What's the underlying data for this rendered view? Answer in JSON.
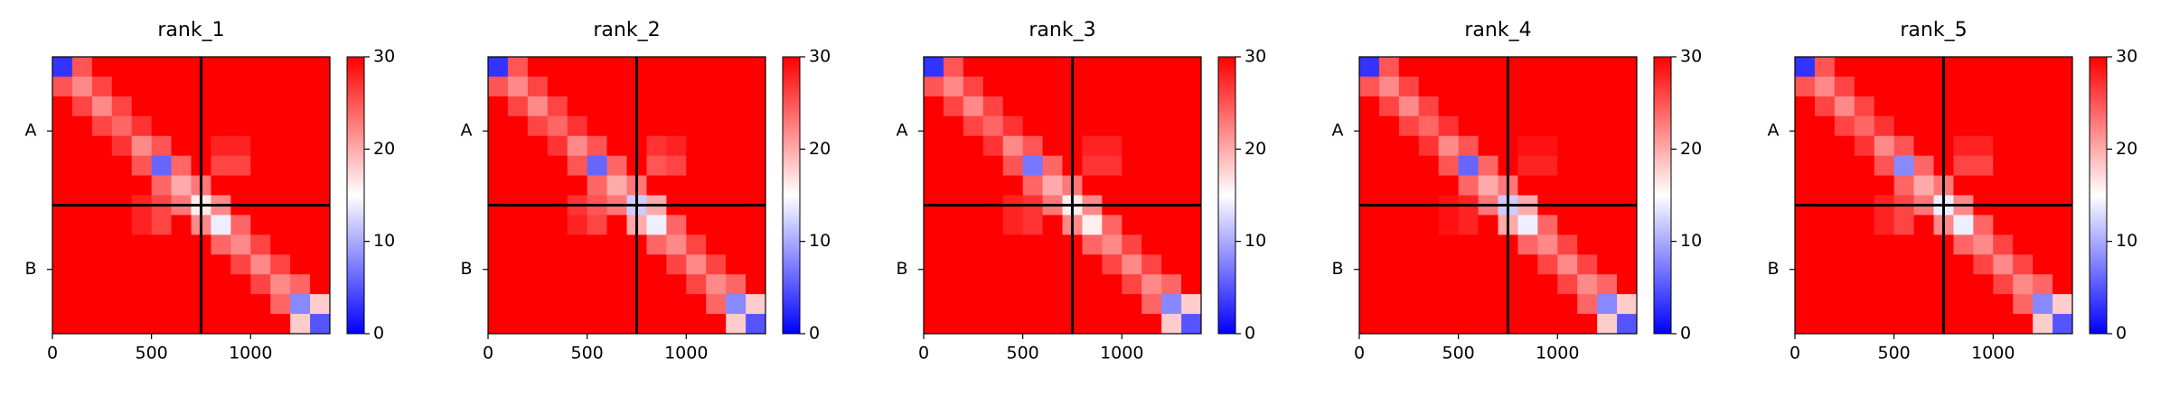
{
  "chart_data": [
    {
      "type": "heatmap",
      "title": "rank_1",
      "xlim": [
        0,
        1400
      ],
      "ylim": [
        1400,
        0
      ],
      "xticks": [
        0,
        500,
        1000
      ],
      "yticks": [
        {
          "value": 375,
          "label": "A"
        },
        {
          "value": 1075,
          "label": "B"
        }
      ],
      "chain_breaks": [
        750
      ],
      "colormap": [
        "#0000ff",
        "#ffffff",
        "#ff0000"
      ],
      "colorbar_lim": [
        0,
        30
      ],
      "colorbar_ticks": [
        0,
        10,
        20,
        30
      ],
      "z": [
        [
          3,
          25,
          30,
          30,
          30,
          30,
          30,
          30,
          30,
          30,
          30,
          30,
          30,
          30
        ],
        [
          25,
          22,
          26,
          30,
          30,
          30,
          30,
          30,
          30,
          30,
          30,
          30,
          30,
          30
        ],
        [
          30,
          26,
          22,
          26,
          30,
          30,
          30,
          30,
          30,
          30,
          30,
          30,
          30,
          30
        ],
        [
          30,
          30,
          26,
          24,
          27,
          30,
          30,
          30,
          30,
          30,
          30,
          30,
          30,
          30
        ],
        [
          30,
          30,
          30,
          27,
          22,
          25,
          30,
          30,
          28,
          28,
          30,
          30,
          30,
          30
        ],
        [
          30,
          30,
          30,
          30,
          25,
          6,
          24,
          30,
          26,
          26,
          30,
          30,
          30,
          30
        ],
        [
          30,
          30,
          30,
          30,
          30,
          24,
          20,
          23,
          30,
          30,
          30,
          30,
          30,
          30
        ],
        [
          30,
          30,
          30,
          30,
          28,
          26,
          23,
          16,
          22,
          30,
          30,
          30,
          30,
          30
        ],
        [
          30,
          30,
          30,
          30,
          28,
          26,
          30,
          22,
          14,
          24,
          30,
          30,
          30,
          30
        ],
        [
          30,
          30,
          30,
          30,
          30,
          30,
          30,
          30,
          24,
          22,
          26,
          30,
          30,
          30
        ],
        [
          30,
          30,
          30,
          30,
          30,
          30,
          30,
          30,
          30,
          26,
          22,
          26,
          30,
          30
        ],
        [
          30,
          30,
          30,
          30,
          30,
          30,
          30,
          30,
          30,
          30,
          26,
          22,
          24,
          30
        ],
        [
          30,
          30,
          30,
          30,
          30,
          30,
          30,
          30,
          30,
          30,
          30,
          24,
          8,
          18
        ],
        [
          30,
          30,
          30,
          30,
          30,
          30,
          30,
          30,
          30,
          30,
          30,
          30,
          18,
          5
        ]
      ]
    },
    {
      "type": "heatmap",
      "title": "rank_2",
      "xlim": [
        0,
        1400
      ],
      "ylim": [
        1400,
        0
      ],
      "xticks": [
        0,
        500,
        1000
      ],
      "yticks": [
        {
          "value": 375,
          "label": "A"
        },
        {
          "value": 1075,
          "label": "B"
        }
      ],
      "chain_breaks": [
        750
      ],
      "colormap": [
        "#0000ff",
        "#ffffff",
        "#ff0000"
      ],
      "colorbar_lim": [
        0,
        30
      ],
      "colorbar_ticks": [
        0,
        10,
        20,
        30
      ],
      "z": [
        [
          3,
          25,
          30,
          30,
          30,
          30,
          30,
          30,
          30,
          30,
          30,
          30,
          30,
          30
        ],
        [
          25,
          22,
          26,
          30,
          30,
          30,
          30,
          30,
          30,
          30,
          30,
          30,
          30,
          30
        ],
        [
          30,
          26,
          22,
          26,
          30,
          30,
          30,
          30,
          30,
          30,
          30,
          30,
          30,
          30
        ],
        [
          30,
          30,
          26,
          24,
          27,
          30,
          30,
          30,
          30,
          30,
          30,
          30,
          30,
          30
        ],
        [
          30,
          30,
          30,
          27,
          22,
          25,
          30,
          30,
          27,
          28,
          30,
          30,
          30,
          30
        ],
        [
          30,
          30,
          30,
          30,
          25,
          6,
          24,
          30,
          25,
          26,
          30,
          30,
          30,
          30
        ],
        [
          30,
          30,
          30,
          30,
          30,
          24,
          20,
          23,
          30,
          30,
          30,
          30,
          30,
          30
        ],
        [
          30,
          30,
          30,
          30,
          27,
          25,
          23,
          12,
          20,
          30,
          30,
          30,
          30,
          30
        ],
        [
          30,
          30,
          30,
          30,
          28,
          26,
          30,
          20,
          14,
          24,
          30,
          30,
          30,
          30
        ],
        [
          30,
          30,
          30,
          30,
          30,
          30,
          30,
          30,
          24,
          22,
          26,
          30,
          30,
          30
        ],
        [
          30,
          30,
          30,
          30,
          30,
          30,
          30,
          30,
          30,
          26,
          22,
          26,
          30,
          30
        ],
        [
          30,
          30,
          30,
          30,
          30,
          30,
          30,
          30,
          30,
          30,
          26,
          22,
          24,
          30
        ],
        [
          30,
          30,
          30,
          30,
          30,
          30,
          30,
          30,
          30,
          30,
          30,
          24,
          8,
          18
        ],
        [
          30,
          30,
          30,
          30,
          30,
          30,
          30,
          30,
          30,
          30,
          30,
          30,
          18,
          5
        ]
      ]
    },
    {
      "type": "heatmap",
      "title": "rank_3",
      "xlim": [
        0,
        1400
      ],
      "ylim": [
        1400,
        0
      ],
      "xticks": [
        0,
        500,
        1000
      ],
      "yticks": [
        {
          "value": 375,
          "label": "A"
        },
        {
          "value": 1075,
          "label": "B"
        }
      ],
      "chain_breaks": [
        750
      ],
      "colormap": [
        "#0000ff",
        "#ffffff",
        "#ff0000"
      ],
      "colorbar_lim": [
        0,
        30
      ],
      "colorbar_ticks": [
        0,
        10,
        20,
        30
      ],
      "z": [
        [
          3,
          25,
          30,
          30,
          30,
          30,
          30,
          30,
          30,
          30,
          30,
          30,
          30,
          30
        ],
        [
          25,
          22,
          26,
          30,
          30,
          30,
          30,
          30,
          30,
          30,
          30,
          30,
          30,
          30
        ],
        [
          30,
          26,
          22,
          26,
          30,
          30,
          30,
          30,
          30,
          30,
          30,
          30,
          30,
          30
        ],
        [
          30,
          30,
          26,
          24,
          27,
          30,
          30,
          30,
          30,
          30,
          30,
          30,
          30,
          30
        ],
        [
          30,
          30,
          30,
          27,
          22,
          25,
          30,
          30,
          28,
          28,
          30,
          30,
          30,
          30
        ],
        [
          30,
          30,
          30,
          30,
          25,
          7,
          24,
          30,
          27,
          27,
          30,
          30,
          30,
          30
        ],
        [
          30,
          30,
          30,
          30,
          30,
          24,
          20,
          23,
          30,
          30,
          30,
          30,
          30,
          30
        ],
        [
          30,
          30,
          30,
          30,
          28,
          27,
          23,
          16,
          22,
          30,
          30,
          30,
          30,
          30
        ],
        [
          30,
          30,
          30,
          30,
          28,
          27,
          30,
          22,
          16,
          24,
          30,
          30,
          30,
          30
        ],
        [
          30,
          30,
          30,
          30,
          30,
          30,
          30,
          30,
          24,
          22,
          26,
          30,
          30,
          30
        ],
        [
          30,
          30,
          30,
          30,
          30,
          30,
          30,
          30,
          30,
          26,
          22,
          26,
          30,
          30
        ],
        [
          30,
          30,
          30,
          30,
          30,
          30,
          30,
          30,
          30,
          30,
          26,
          22,
          24,
          30
        ],
        [
          30,
          30,
          30,
          30,
          30,
          30,
          30,
          30,
          30,
          30,
          30,
          24,
          8,
          18
        ],
        [
          30,
          30,
          30,
          30,
          30,
          30,
          30,
          30,
          30,
          30,
          30,
          30,
          18,
          5
        ]
      ]
    },
    {
      "type": "heatmap",
      "title": "rank_4",
      "xlim": [
        0,
        1400
      ],
      "ylim": [
        1400,
        0
      ],
      "xticks": [
        0,
        500,
        1000
      ],
      "yticks": [
        {
          "value": 375,
          "label": "A"
        },
        {
          "value": 1075,
          "label": "B"
        }
      ],
      "chain_breaks": [
        750
      ],
      "colormap": [
        "#0000ff",
        "#ffffff",
        "#ff0000"
      ],
      "colorbar_lim": [
        0,
        30
      ],
      "colorbar_ticks": [
        0,
        10,
        20,
        30
      ],
      "z": [
        [
          3,
          25,
          30,
          30,
          30,
          30,
          30,
          30,
          30,
          30,
          30,
          30,
          30,
          30
        ],
        [
          25,
          22,
          26,
          30,
          30,
          30,
          30,
          30,
          30,
          30,
          30,
          30,
          30,
          30
        ],
        [
          30,
          26,
          22,
          26,
          30,
          30,
          30,
          30,
          30,
          30,
          30,
          30,
          30,
          30
        ],
        [
          30,
          30,
          26,
          24,
          27,
          30,
          30,
          30,
          30,
          30,
          30,
          30,
          30,
          30
        ],
        [
          30,
          30,
          30,
          27,
          22,
          25,
          30,
          30,
          29,
          29,
          30,
          30,
          30,
          30
        ],
        [
          30,
          30,
          30,
          30,
          25,
          6,
          24,
          30,
          28,
          28,
          30,
          30,
          30,
          30
        ],
        [
          30,
          30,
          30,
          30,
          30,
          24,
          20,
          23,
          30,
          30,
          30,
          30,
          30,
          30
        ],
        [
          30,
          30,
          30,
          30,
          29,
          28,
          23,
          12,
          20,
          30,
          30,
          30,
          30,
          30
        ],
        [
          30,
          30,
          30,
          30,
          29,
          28,
          30,
          20,
          14,
          24,
          30,
          30,
          30,
          30
        ],
        [
          30,
          30,
          30,
          30,
          30,
          30,
          30,
          30,
          24,
          22,
          26,
          30,
          30,
          30
        ],
        [
          30,
          30,
          30,
          30,
          30,
          30,
          30,
          30,
          30,
          26,
          22,
          26,
          30,
          30
        ],
        [
          30,
          30,
          30,
          30,
          30,
          30,
          30,
          30,
          30,
          30,
          26,
          22,
          24,
          30
        ],
        [
          30,
          30,
          30,
          30,
          30,
          30,
          30,
          30,
          30,
          30,
          30,
          24,
          8,
          18
        ],
        [
          30,
          30,
          30,
          30,
          30,
          30,
          30,
          30,
          30,
          30,
          30,
          30,
          18,
          5
        ]
      ]
    },
    {
      "type": "heatmap",
      "title": "rank_5",
      "xlim": [
        0,
        1400
      ],
      "ylim": [
        1400,
        0
      ],
      "xticks": [
        0,
        500,
        1000
      ],
      "yticks": [
        {
          "value": 375,
          "label": "A"
        },
        {
          "value": 1075,
          "label": "B"
        }
      ],
      "chain_breaks": [
        750
      ],
      "colormap": [
        "#0000ff",
        "#ffffff",
        "#ff0000"
      ],
      "colorbar_lim": [
        0,
        30
      ],
      "colorbar_ticks": [
        0,
        10,
        20,
        30
      ],
      "z": [
        [
          3,
          25,
          30,
          30,
          30,
          30,
          30,
          30,
          30,
          30,
          30,
          30,
          30,
          30
        ],
        [
          25,
          22,
          26,
          30,
          30,
          30,
          30,
          30,
          30,
          30,
          30,
          30,
          30,
          30
        ],
        [
          30,
          26,
          22,
          26,
          30,
          30,
          30,
          30,
          30,
          30,
          30,
          30,
          30,
          30
        ],
        [
          30,
          30,
          26,
          24,
          27,
          30,
          30,
          30,
          30,
          30,
          30,
          30,
          30,
          30
        ],
        [
          30,
          30,
          30,
          27,
          22,
          25,
          30,
          30,
          28,
          28,
          30,
          30,
          30,
          30
        ],
        [
          30,
          30,
          30,
          30,
          25,
          8,
          24,
          30,
          26,
          26,
          30,
          30,
          30,
          30
        ],
        [
          30,
          30,
          30,
          30,
          30,
          24,
          20,
          23,
          30,
          30,
          30,
          30,
          30,
          30
        ],
        [
          30,
          30,
          30,
          30,
          28,
          26,
          23,
          14,
          22,
          30,
          30,
          30,
          30,
          30
        ],
        [
          30,
          30,
          30,
          30,
          28,
          26,
          30,
          22,
          14,
          24,
          30,
          30,
          30,
          30
        ],
        [
          30,
          30,
          30,
          30,
          30,
          30,
          30,
          30,
          24,
          22,
          26,
          30,
          30,
          30
        ],
        [
          30,
          30,
          30,
          30,
          30,
          30,
          30,
          30,
          30,
          26,
          22,
          26,
          30,
          30
        ],
        [
          30,
          30,
          30,
          30,
          30,
          30,
          30,
          30,
          30,
          30,
          26,
          22,
          24,
          30
        ],
        [
          30,
          30,
          30,
          30,
          30,
          30,
          30,
          30,
          30,
          30,
          30,
          24,
          8,
          18
        ],
        [
          30,
          30,
          30,
          30,
          30,
          30,
          30,
          30,
          30,
          30,
          30,
          30,
          18,
          5
        ]
      ]
    }
  ]
}
